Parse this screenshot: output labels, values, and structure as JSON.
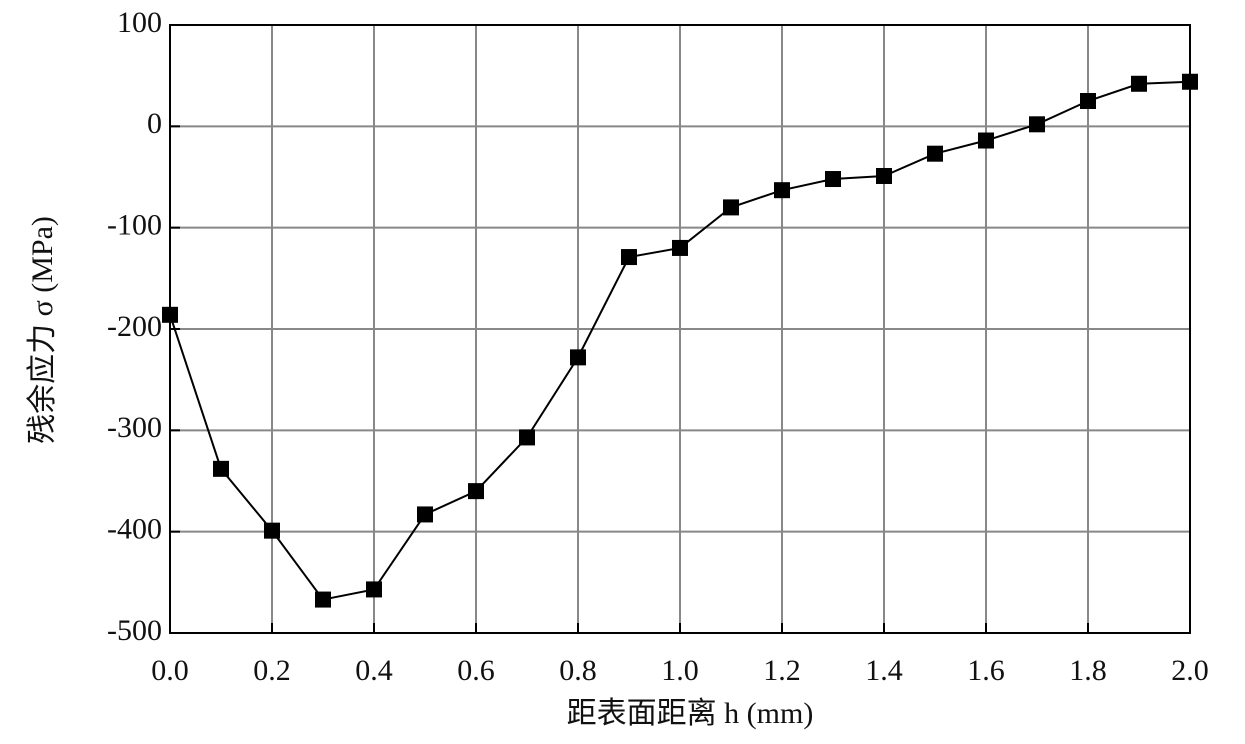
{
  "chart_data": {
    "type": "line",
    "xlabel": "距表面距离 h (mm)",
    "ylabel": "残余应力 σ (MPa)",
    "x": [
      0.0,
      0.1,
      0.2,
      0.3,
      0.4,
      0.5,
      0.6,
      0.7,
      0.8,
      0.9,
      1.0,
      1.1,
      1.2,
      1.3,
      1.4,
      1.5,
      1.6,
      1.7,
      1.8,
      1.9,
      2.0
    ],
    "series": [
      {
        "name": null,
        "color": "#000000",
        "marker": "square",
        "values": [
          -186,
          -338,
          -399,
          -467,
          -457,
          -383,
          -360,
          -307,
          -228,
          -129,
          -120,
          -80,
          -63,
          -52,
          -49,
          -27,
          -14,
          2,
          25,
          42,
          44
        ]
      }
    ],
    "xlim": [
      0,
      2
    ],
    "xticks": [
      {
        "value": 0,
        "label": "0.0"
      },
      0.2,
      0.4,
      0.6,
      0.8,
      {
        "value": 1,
        "label": "1.0"
      },
      1.2,
      1.4,
      1.6,
      1.8,
      {
        "value": 2,
        "label": "2.0"
      }
    ],
    "ylim": [
      -500,
      100
    ],
    "yticks": [
      -500,
      -400,
      -300,
      -200,
      -100,
      0,
      100
    ],
    "grid": true
  }
}
